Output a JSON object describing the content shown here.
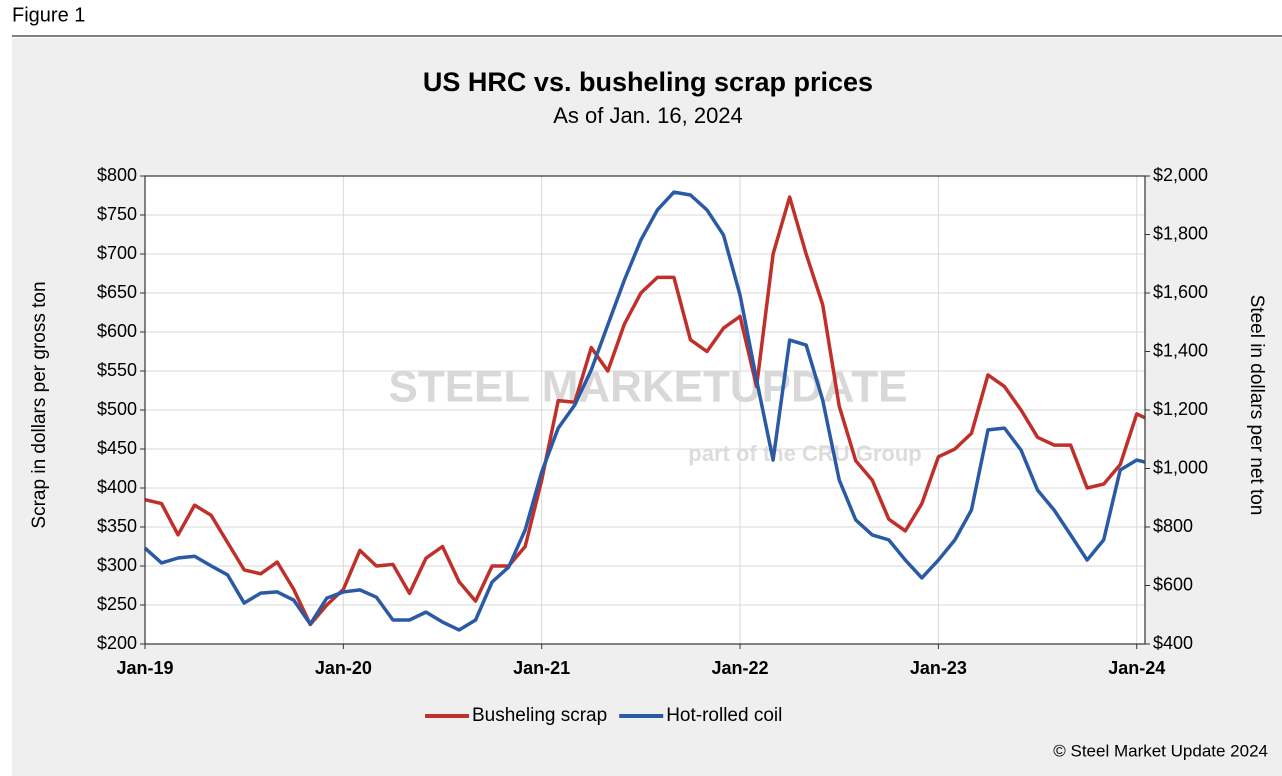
{
  "figure_label": "Figure 1",
  "chart_data": {
    "type": "line",
    "title": "US HRC vs. busheling scrap prices",
    "subtitle": "As of Jan. 16, 2024",
    "ylabel": "Scrap in dollars per gross ton",
    "y2label": "Steel in dollars per net ton",
    "source": "© Steel Market Update 2024",
    "watermark": {
      "brand": "STEEL MARKETUPDATE",
      "tagline": "part of the CRU Group"
    },
    "x": [
      0,
      1,
      2,
      3,
      4,
      5,
      6,
      7,
      8,
      9,
      10,
      11,
      12,
      13,
      14,
      15,
      16,
      17,
      18,
      19,
      20,
      21,
      22,
      23,
      24,
      25,
      26,
      27,
      28,
      29,
      30,
      31,
      32,
      33,
      34,
      35,
      36,
      37,
      38,
      39,
      40,
      41,
      42,
      43,
      44,
      45,
      46,
      47,
      48,
      49,
      50,
      51,
      52,
      53,
      54,
      55,
      56,
      57,
      58,
      59,
      60,
      60.5
    ],
    "xlim": [
      0,
      60.5
    ],
    "xticks": [
      {
        "value": 0,
        "label": "Jan-19"
      },
      {
        "value": 12,
        "label": "Jan-20"
      },
      {
        "value": 24,
        "label": "Jan-21"
      },
      {
        "value": 36,
        "label": "Jan-22"
      },
      {
        "value": 48,
        "label": "Jan-23"
      },
      {
        "value": 60,
        "label": "Jan-24"
      }
    ],
    "ylim": [
      200,
      800
    ],
    "yticks": [
      {
        "value": 200,
        "label": "$200"
      },
      {
        "value": 250,
        "label": "$250"
      },
      {
        "value": 300,
        "label": "$300"
      },
      {
        "value": 350,
        "label": "$350"
      },
      {
        "value": 400,
        "label": "$400"
      },
      {
        "value": 450,
        "label": "$450"
      },
      {
        "value": 500,
        "label": "$500"
      },
      {
        "value": 550,
        "label": "$550"
      },
      {
        "value": 600,
        "label": "$600"
      },
      {
        "value": 650,
        "label": "$650"
      },
      {
        "value": 700,
        "label": "$700"
      },
      {
        "value": 750,
        "label": "$750"
      },
      {
        "value": 800,
        "label": "$800"
      }
    ],
    "y2lim": [
      400,
      2000
    ],
    "y2ticks": [
      {
        "value": 400,
        "label": "$400"
      },
      {
        "value": 600,
        "label": "$600"
      },
      {
        "value": 800,
        "label": "$800"
      },
      {
        "value": 1000,
        "label": "$1,000"
      },
      {
        "value": 1200,
        "label": "$1,200"
      },
      {
        "value": 1400,
        "label": "$1,400"
      },
      {
        "value": 1600,
        "label": "$1,600"
      },
      {
        "value": 1800,
        "label": "$1,800"
      },
      {
        "value": 2000,
        "label": "$2,000"
      }
    ],
    "grid": true,
    "legend": "bottom",
    "series": [
      {
        "name": "Busheling scrap",
        "color": "#c0302b",
        "axis": "y",
        "values": [
          385,
          380,
          340,
          378,
          365,
          330,
          295,
          290,
          305,
          270,
          225,
          250,
          270,
          320,
          300,
          302,
          265,
          310,
          325,
          280,
          255,
          300,
          300,
          325,
          410,
          512,
          510,
          580,
          550,
          610,
          650,
          670,
          670,
          590,
          575,
          605,
          620,
          530,
          700,
          773,
          700,
          635,
          505,
          435,
          410,
          360,
          345,
          380,
          440,
          450,
          470,
          545,
          530,
          500,
          465,
          455,
          455,
          400,
          405,
          430,
          495,
          490
        ]
      },
      {
        "name": "Hot-rolled coil",
        "color": "#2a5aa5",
        "axis": "y2",
        "values": [
          728,
          677,
          694,
          700,
          667,
          636,
          540,
          574,
          578,
          550,
          468,
          557,
          578,
          585,
          560,
          482,
          482,
          509,
          475,
          448,
          482,
          612,
          663,
          790,
          988,
          1138,
          1217,
          1337,
          1491,
          1644,
          1781,
          1884,
          1945,
          1935,
          1884,
          1798,
          1593,
          1303,
          1029,
          1439,
          1422,
          1234,
          961,
          824,
          773,
          756,
          687,
          626,
          687,
          756,
          858,
          1132,
          1138,
          1063,
          926,
          858,
          773,
          687,
          756,
          995,
          1029,
          1022
        ]
      }
    ]
  }
}
